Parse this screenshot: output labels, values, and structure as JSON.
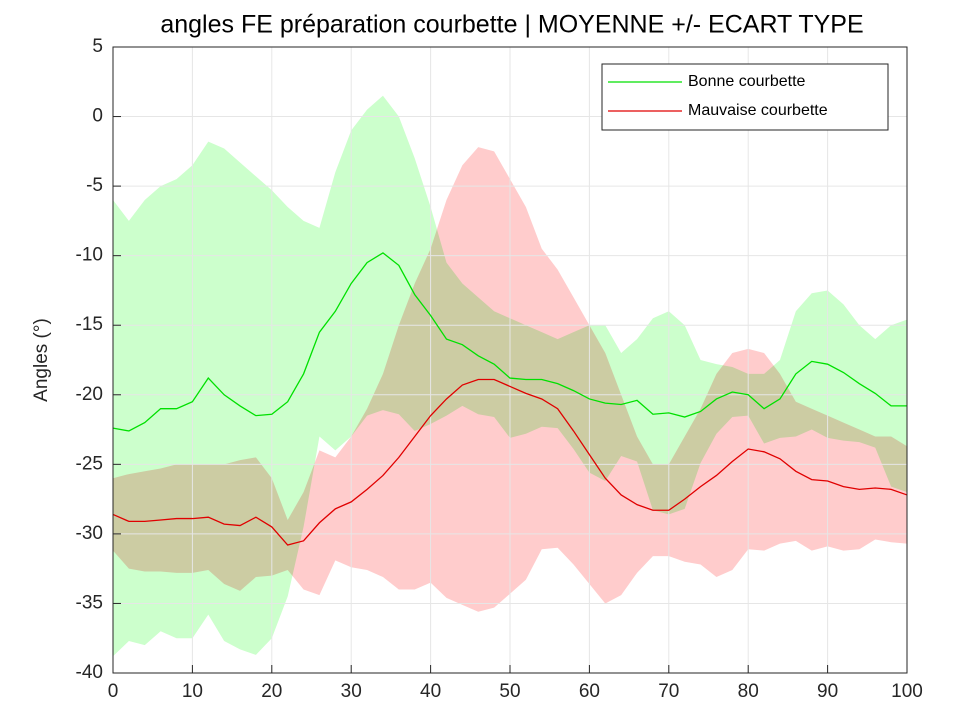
{
  "chart_data": {
    "type": "line_band",
    "title": "angles FE préparation courbette | MOYENNE +/- ECART TYPE",
    "ylabel": "Angles (°)",
    "x": [
      0,
      2,
      4,
      6,
      8,
      10,
      12,
      14,
      16,
      18,
      20,
      22,
      24,
      26,
      28,
      30,
      32,
      34,
      36,
      38,
      40,
      42,
      44,
      46,
      48,
      50,
      52,
      54,
      56,
      58,
      60,
      62,
      64,
      66,
      68,
      70,
      72,
      74,
      76,
      78,
      80,
      82,
      84,
      86,
      88,
      90,
      92,
      94,
      96,
      98,
      100
    ],
    "series": [
      {
        "name": "Bonne courbette",
        "color": "#00e000",
        "band_color": "#ccffcc",
        "values": [
          -22.4,
          -22.6,
          -22,
          -21,
          -21,
          -20.5,
          -18.8,
          -20,
          -20.8,
          -21.5,
          -21.4,
          -20.5,
          -18.5,
          -15.5,
          -14,
          -12,
          -10.5,
          -9.8,
          -10.7,
          -12.8,
          -14.3,
          -16,
          -16.4,
          -17.2,
          -17.8,
          -18.8,
          -18.9,
          -18.9,
          -19.2,
          -19.7,
          -20.3,
          -20.6,
          -20.7,
          -20.4,
          -21.4,
          -21.3,
          -21.6,
          -21.2,
          -20.3,
          -19.8,
          -20,
          -21,
          -20.3,
          -18.5,
          -17.6,
          -17.8,
          -18.4,
          -19.2,
          -19.9,
          -20.8,
          -20.8
        ],
        "std": [
          16.4,
          15.1,
          16,
          16,
          16.5,
          17,
          17,
          17.7,
          17.5,
          17.2,
          16.1,
          14,
          11,
          7.5,
          10,
          11,
          11,
          11.3,
          10.7,
          9.8,
          7.8,
          5.5,
          4.4,
          4.2,
          3.8,
          4.3,
          3.9,
          3.4,
          3.2,
          4.2,
          5.3,
          5.6,
          3.7,
          4.4,
          6.9,
          7.3,
          6.6,
          3.7,
          2.5,
          1.8,
          1.5,
          2.5,
          2.8,
          4.5,
          4.9,
          5.3,
          4.9,
          4.2,
          3.9,
          5.8,
          6.2
        ]
      },
      {
        "name": "Mauvaise courbette",
        "color": "#e00000",
        "band_color": "#ffcccc",
        "values": [
          -28.6,
          -29.1,
          -29.1,
          -29,
          -28.9,
          -28.9,
          -28.8,
          -29.3,
          -29.4,
          -28.8,
          -29.5,
          -30.8,
          -30.5,
          -29.2,
          -28.2,
          -27.7,
          -26.8,
          -25.8,
          -24.5,
          -23,
          -21.5,
          -20.3,
          -19.3,
          -18.9,
          -18.9,
          -19.4,
          -19.9,
          -20.3,
          -21,
          -22.6,
          -24.3,
          -26,
          -27.2,
          -27.9,
          -28.3,
          -28.3,
          -27.5,
          -26.6,
          -25.8,
          -24.8,
          -23.9,
          -24.1,
          -24.6,
          -25.5,
          -26.1,
          -26.2,
          -26.6,
          -26.8,
          -26.7,
          -26.8,
          -27.2
        ],
        "std": [
          2.6,
          3.4,
          3.6,
          3.7,
          3.9,
          3.9,
          3.8,
          4.3,
          4.7,
          4.3,
          3.5,
          1.8,
          3.5,
          5.2,
          3.7,
          4.7,
          5.8,
          7.3,
          9.5,
          11,
          12,
          14.3,
          15.8,
          16.7,
          16.4,
          14.9,
          13.4,
          10.8,
          10,
          9.6,
          9.3,
          9,
          7.2,
          4.9,
          3.3,
          3.3,
          4.5,
          5.6,
          7.3,
          7.8,
          7.2,
          7.1,
          6.1,
          5,
          5.1,
          4.7,
          4.6,
          4.3,
          3.7,
          3.8,
          3.5
        ]
      }
    ],
    "xlim": [
      0,
      100
    ],
    "xticks": [
      0,
      10,
      20,
      30,
      40,
      50,
      60,
      70,
      80,
      90,
      100
    ],
    "ylim": [
      -40,
      5
    ],
    "yticks": [
      5,
      0,
      -5,
      -10,
      -15,
      -20,
      -25,
      -30,
      -35,
      -40
    ],
    "grid": true,
    "legend": "top-right"
  }
}
